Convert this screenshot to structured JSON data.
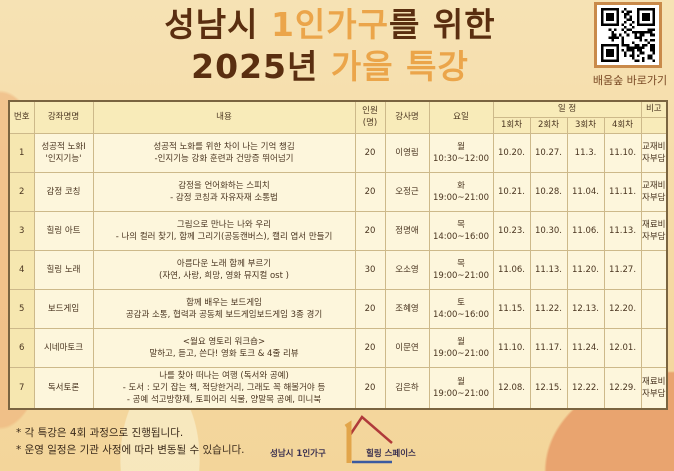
{
  "title": {
    "line1_a": "성남시 ",
    "line1_b": "1인가구",
    "line1_c": "를 위한",
    "line2_a": "2025년 ",
    "line2_b": "가을 특강"
  },
  "qr": {
    "label": "배움숲 바로가기"
  },
  "colors": {
    "title_dark": "#5a2e10",
    "title_accent": "#eba54a",
    "header_bg": "#f8ebb9",
    "cell_bg": "#fdf6dc"
  },
  "table": {
    "headers": {
      "no": "번호",
      "course": "강좌명명",
      "content": "내용",
      "capacity": "인원\n(명)",
      "instructor": "강사명",
      "day": "요일",
      "schedule": "일 정",
      "note": "비고",
      "sessions": [
        "1회차",
        "2회차",
        "3회차",
        "4회차"
      ]
    },
    "rows": [
      {
        "no": "1",
        "course": "성공적 노화Ⅰ\n'인지기능'",
        "content": "성공적 노화를 위한 차이 나는 기억 챙김\n-인지기능 강화 훈련과 건망증 뛰어넘기",
        "capacity": "20",
        "instructor": "이영림",
        "day": "월\n10:30~12:00",
        "dates": [
          "10.20.",
          "10.27.",
          "11.3.",
          "11.10."
        ],
        "note": "교재비\n자부담"
      },
      {
        "no": "2",
        "course": "감정 코칭",
        "content": "감정을 언어화하는 스피치\n- 감정 코칭과 자유자재 소통법",
        "capacity": "20",
        "instructor": "오정근",
        "day": "화\n19:00~21:00",
        "dates": [
          "10.21.",
          "10.28.",
          "11.04.",
          "11.11."
        ],
        "note": "교재비\n자부담"
      },
      {
        "no": "3",
        "course": "힐링 아트",
        "content": "그림으로 만나는 나와 우리\n- 나의 컬러 찾기, 함께 그리기(공동캔버스), 캘리 엽서 만들기",
        "capacity": "20",
        "instructor": "정명애",
        "day": "목\n14:00~16:00",
        "dates": [
          "10.23.",
          "10.30.",
          "11.06.",
          "11.13."
        ],
        "note": "재료비\n자부담"
      },
      {
        "no": "4",
        "course": "힐링 노래",
        "content": "아름다운 노래 함께 부르기\n(자연, 사랑, 희망, 영화 뮤지컬 ost )",
        "capacity": "30",
        "instructor": "오소영",
        "day": "목\n19:00~21:00",
        "dates": [
          "11.06.",
          "11.13.",
          "11.20.",
          "11.27."
        ],
        "note": ""
      },
      {
        "no": "5",
        "course": "보드게임",
        "content": "함께 배우는 보드게임\n공감과 소통, 협력과 공동체 보드게임보드게임 3종 경기",
        "capacity": "20",
        "instructor": "조혜영",
        "day": "토\n14:00~16:00",
        "dates": [
          "11.15.",
          "11.22.",
          "12.13.",
          "12.20."
        ],
        "note": ""
      },
      {
        "no": "6",
        "course": "시네마토크",
        "content": "<월요 영토리 워크숍>\n말하고, 듣고, 쓴다! 영화 토크 & 4줄 리뷰",
        "capacity": "20",
        "instructor": "이문연",
        "day": "월\n19:00~21:00",
        "dates": [
          "11.10.",
          "11.17.",
          "11.24.",
          "12.01."
        ],
        "note": ""
      },
      {
        "no": "7",
        "course": "독서토론",
        "content": "나를 찾아 떠나는 여행 (독서와 공예)\n- 도서 : 모기 잡는 책, 적당한거리, 그래도 꼭 해볼거야 등\n- 공예 석고방향제, 토피어리 식물, 양말목 공예, 미니북",
        "capacity": "20",
        "instructor": "김은하",
        "day": "월\n19:00~21:00",
        "dates": [
          "12.08.",
          "12.15.",
          "12.22.",
          "12.29."
        ],
        "note": "재료비\n자부담"
      }
    ]
  },
  "notes": [
    "* 각 특강은 4회 과정으로 진행됩니다.",
    "* 운영 일정은 기관 사정에 따라 변동될 수 있습니다."
  ],
  "logo": {
    "left": "성남시 1인가구",
    "right": "힐링 스페이스"
  }
}
